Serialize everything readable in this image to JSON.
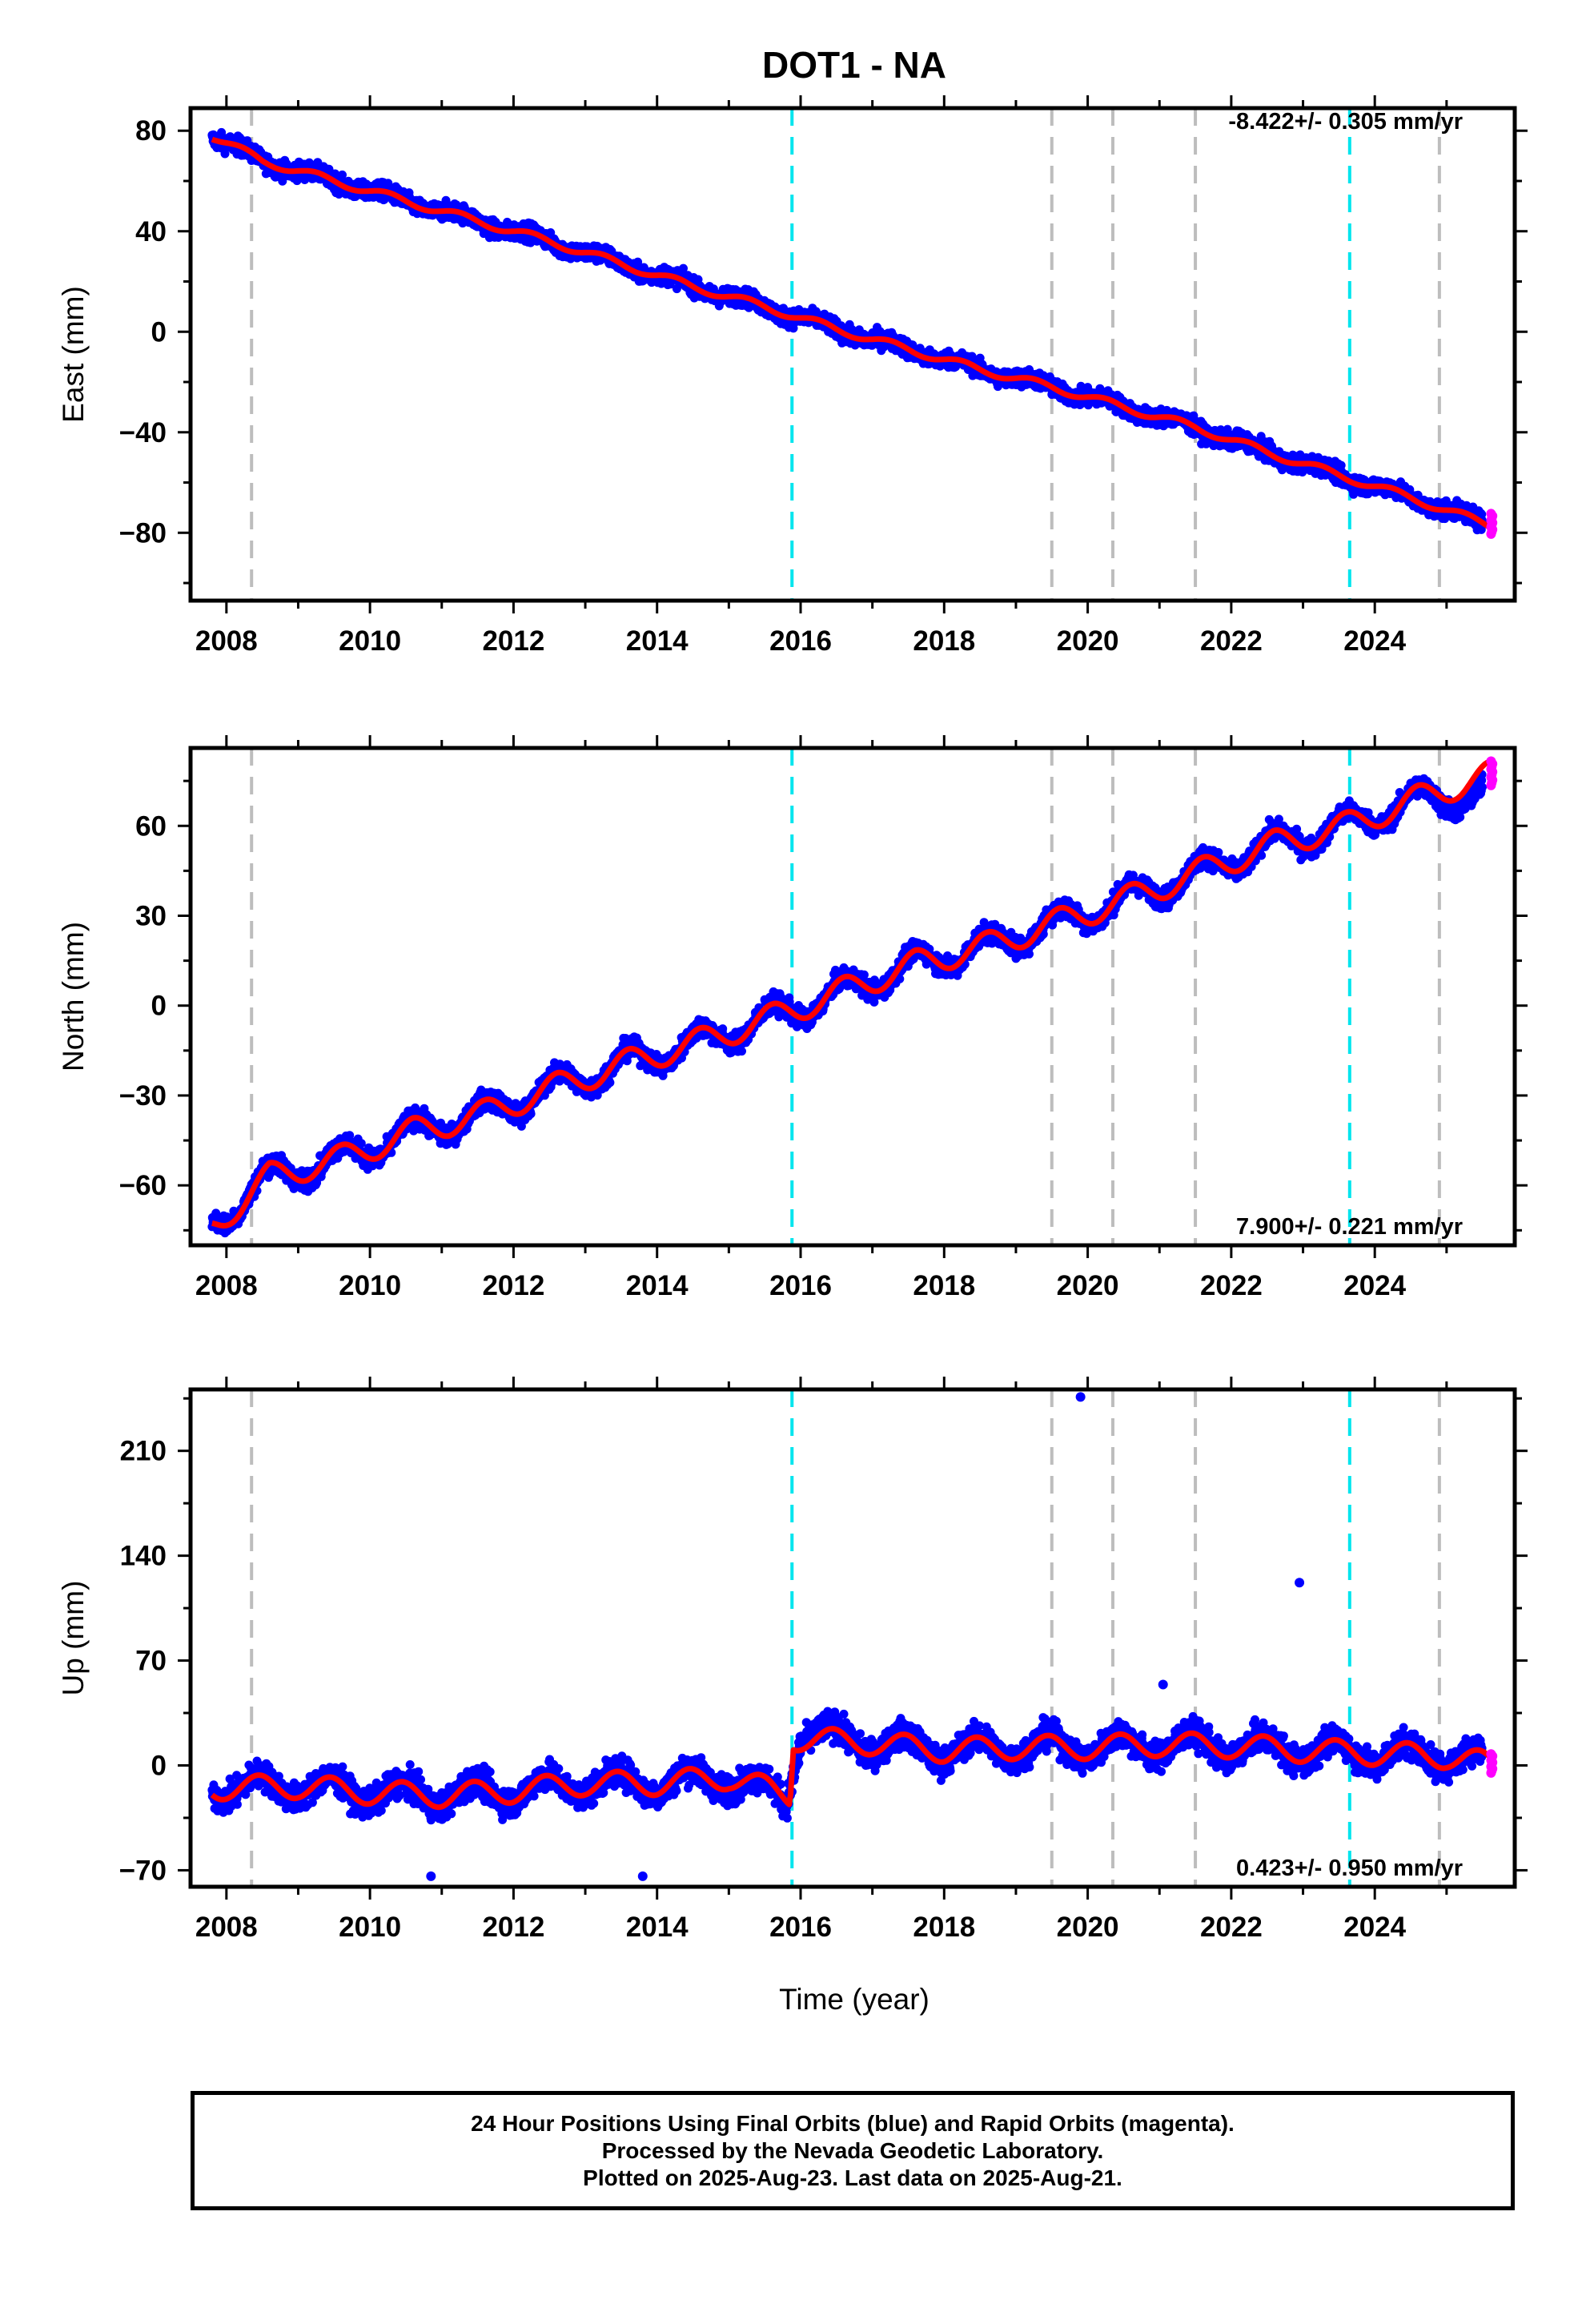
{
  "title": "DOT1 - NA",
  "x_axis_label": "Time (year)",
  "x_ticks": [
    2008,
    2010,
    2012,
    2014,
    2016,
    2018,
    2020,
    2022,
    2024
  ],
  "x_range": [
    2007.5,
    2025.95
  ],
  "colors": {
    "final_orbits": "#0000ff",
    "rapid_orbits": "#ff00ff",
    "model_fit": "#ff0000",
    "event_gray": "#bdbdbd",
    "event_cyan": "#00e5ee"
  },
  "events": {
    "gray": [
      2008.35,
      2019.5,
      2020.35,
      2021.5,
      2024.9
    ],
    "cyan": [
      2015.88,
      2023.65
    ]
  },
  "panels": [
    {
      "id": "east",
      "ylabel": "East (mm)",
      "rate_text": "-8.422+/- 0.305 mm/yr",
      "rate_position": "top-right",
      "ylim": [
        -107,
        89
      ],
      "yticks": [
        80,
        40,
        0,
        -40,
        -80
      ],
      "ytick_labels": [
        "80",
        "40",
        "0",
        "−40",
        "−80"
      ]
    },
    {
      "id": "north",
      "ylabel": "North (mm)",
      "rate_text": "7.900+/- 0.221 mm/yr",
      "rate_position": "bottom-right",
      "ylim": [
        -80,
        86
      ],
      "yticks": [
        60,
        30,
        0,
        -30,
        -60
      ],
      "ytick_labels": [
        "60",
        "30",
        "0",
        "−30",
        "−60"
      ]
    },
    {
      "id": "up",
      "ylabel": "Up (mm)",
      "rate_text": "0.423+/- 0.950 mm/yr",
      "rate_position": "bottom-right",
      "ylim": [
        -81,
        251
      ],
      "yticks": [
        210,
        140,
        70,
        0,
        -70
      ],
      "ytick_labels": [
        "210",
        "140",
        "70",
        "0",
        "−70"
      ]
    }
  ],
  "chart_data": [
    {
      "type": "scatter",
      "title": "DOT1 - NA",
      "xlabel": "",
      "ylabel": "East (mm)",
      "xlim": [
        2007.5,
        2025.95
      ],
      "ylim": [
        -107,
        89
      ],
      "series": [
        {
          "name": "Final Orbits",
          "color": "#0000ff",
          "marker": "point",
          "x": [
            2007.8,
            2008.5,
            2009.5,
            2010.5,
            2011.5,
            2012.5,
            2013.5,
            2014.5,
            2015.5,
            2016.5,
            2017.5,
            2018.5,
            2019.5,
            2020.5,
            2021.5,
            2022.5,
            2023.5,
            2024.5,
            2025.5
          ],
          "y": [
            78,
            68,
            60,
            52,
            44,
            36,
            27,
            18,
            10,
            1,
            -7,
            -15,
            -22,
            -30,
            -38,
            -48,
            -57,
            -66,
            -76
          ]
        },
        {
          "name": "Rapid Orbits",
          "color": "#ff00ff",
          "marker": "point",
          "x": [
            2025.62
          ],
          "y": [
            -76
          ]
        },
        {
          "name": "Model Fit",
          "color": "#ff0000",
          "style": "line",
          "x": [
            2007.8,
            2008.5,
            2009.5,
            2010.5,
            2011.5,
            2012.5,
            2013.5,
            2014.5,
            2015.5,
            2016.5,
            2017.5,
            2018.5,
            2019.5,
            2020.5,
            2021.5,
            2022.5,
            2023.5,
            2024.5,
            2025.6
          ],
          "y": [
            78,
            68,
            60,
            52,
            44,
            36,
            27,
            18,
            10,
            1,
            -7,
            -15,
            -22,
            -30,
            -38,
            -48,
            -57,
            -66,
            -77
          ]
        }
      ],
      "annotations": [
        "-8.422+/- 0.305 mm/yr"
      ]
    },
    {
      "type": "scatter",
      "xlabel": "",
      "ylabel": "North (mm)",
      "xlim": [
        2007.5,
        2025.95
      ],
      "ylim": [
        -80,
        86
      ],
      "series": [
        {
          "name": "Final Orbits",
          "color": "#0000ff",
          "marker": "point",
          "x": [
            2007.8,
            2008.6,
            2009.6,
            2010.6,
            2011.6,
            2012.6,
            2013.6,
            2014.6,
            2015.6,
            2016.6,
            2017.6,
            2018.6,
            2019.6,
            2020.6,
            2021.6,
            2022.6,
            2023.6,
            2024.6,
            2025.5
          ],
          "y": [
            -73,
            -57,
            -51,
            -42,
            -36,
            -27,
            -19,
            -12,
            -4,
            5,
            14,
            20,
            28,
            36,
            45,
            54,
            60,
            69,
            70
          ]
        },
        {
          "name": "Rapid Orbits",
          "color": "#ff00ff",
          "marker": "point",
          "x": [
            2025.62
          ],
          "y": [
            78
          ]
        },
        {
          "name": "Model Fit",
          "color": "#ff0000",
          "style": "line",
          "x": [
            2007.8,
            2008.6,
            2009.6,
            2010.6,
            2011.6,
            2012.6,
            2013.6,
            2014.6,
            2015.6,
            2016.6,
            2017.6,
            2018.6,
            2019.6,
            2020.6,
            2021.6,
            2022.6,
            2023.6,
            2024.6,
            2025.6
          ],
          "y": [
            -74,
            -57,
            -51,
            -42,
            -36,
            -27,
            -19,
            -12,
            -4,
            5,
            14,
            20,
            28,
            36,
            45,
            54,
            60,
            69,
            77
          ]
        }
      ],
      "annotations": [
        "7.900+/- 0.221 mm/yr"
      ]
    },
    {
      "type": "scatter",
      "xlabel": "Time (year)",
      "ylabel": "Up (mm)",
      "xlim": [
        2007.5,
        2025.95
      ],
      "ylim": [
        -81,
        251
      ],
      "series": [
        {
          "name": "Final Orbits",
          "color": "#0000ff",
          "marker": "point",
          "x": [
            2007.8,
            2009.0,
            2010.0,
            2011.0,
            2012.0,
            2013.0,
            2014.0,
            2015.0,
            2015.8,
            2016.0,
            2017.0,
            2018.0,
            2019.0,
            2020.0,
            2021.0,
            2022.0,
            2023.0,
            2024.0,
            2025.0,
            2025.5
          ],
          "y": [
            -15,
            -14,
            -18,
            -20,
            -17,
            -12,
            -12,
            -8,
            -22,
            22,
            15,
            10,
            12,
            12,
            14,
            13,
            10,
            8,
            6,
            4
          ]
        },
        {
          "name": "Outliers",
          "color": "#0000ff",
          "marker": "point",
          "x": [
            2019.9,
            2022.95,
            2021.05,
            2010.85,
            2013.8
          ],
          "y": [
            246,
            122,
            54,
            -74,
            -74
          ]
        },
        {
          "name": "Rapid Orbits",
          "color": "#ff00ff",
          "marker": "point",
          "x": [
            2025.62
          ],
          "y": [
            2
          ]
        },
        {
          "name": "Model Fit",
          "color": "#ff0000",
          "style": "line",
          "x": [
            2007.8,
            2009.0,
            2010.0,
            2011.0,
            2012.0,
            2013.0,
            2014.0,
            2015.0,
            2015.85,
            2015.9,
            2017.0,
            2018.0,
            2019.0,
            2020.0,
            2021.0,
            2022.0,
            2023.0,
            2024.0,
            2025.0,
            2025.6
          ],
          "y": [
            -15,
            -14,
            -18,
            -20,
            -17,
            -12,
            -12,
            -8,
            -20,
            18,
            15,
            10,
            12,
            12,
            14,
            13,
            10,
            8,
            6,
            1
          ]
        }
      ],
      "annotations": [
        "0.423+/- 0.950 mm/yr"
      ]
    }
  ],
  "footer": {
    "line1": "24 Hour Positions Using Final Orbits (blue) and Rapid Orbits (magenta).",
    "line2": "Processed by the Nevada Geodetic Laboratory.",
    "line3": "Plotted on 2025-Aug-23. Last data on 2025-Aug-21."
  }
}
